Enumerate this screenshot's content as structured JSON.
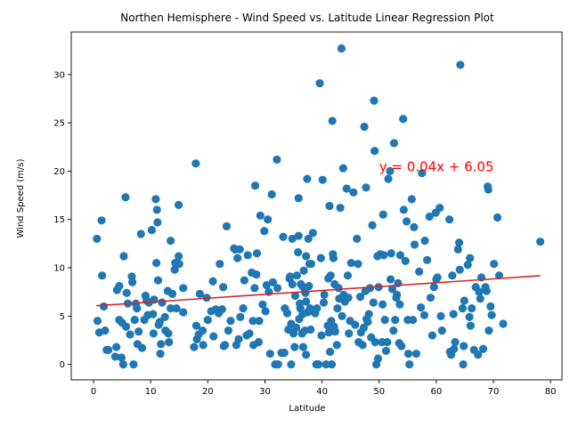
{
  "chart_data": {
    "type": "scatter",
    "title": "Northen Hemisphere - Wind Speed vs. Latitude Linear Regression Plot",
    "xlabel": "Latitude",
    "ylabel": "Wind Speed (m/s)",
    "xlim": [
      -3.9,
      82.0
    ],
    "ylim": [
      -1.6,
      34.4
    ],
    "xticks": [
      0,
      10,
      20,
      30,
      40,
      50,
      60,
      70,
      80
    ],
    "yticks": [
      0,
      5,
      10,
      15,
      20,
      25,
      30
    ],
    "grid": false,
    "point_color": "#1f77b4",
    "regression": {
      "slope": 0.04,
      "intercept": 6.05,
      "x_range": [
        0.5,
        78.2
      ],
      "color": "#d62728",
      "equation_label": "y = 0.04x + 6.05",
      "label_x": 50,
      "label_y": 20,
      "label_color": "#ff0000"
    },
    "points": [
      [
        0.6,
        13.0
      ],
      [
        0.7,
        4.5
      ],
      [
        1.0,
        3.3
      ],
      [
        1.4,
        14.9
      ],
      [
        1.5,
        9.2
      ],
      [
        1.8,
        6.0
      ],
      [
        2.0,
        3.5
      ],
      [
        2.3,
        1.5
      ],
      [
        2.6,
        1.5
      ],
      [
        3.8,
        0.8
      ],
      [
        4.0,
        1.8
      ],
      [
        4.1,
        7.7
      ],
      [
        4.5,
        8.1
      ],
      [
        4.5,
        4.6
      ],
      [
        4.9,
        0.7
      ],
      [
        5.0,
        4.3
      ],
      [
        5.2,
        0.0
      ],
      [
        5.3,
        11.2
      ],
      [
        5.6,
        17.3
      ],
      [
        5.7,
        3.9
      ],
      [
        5.8,
        7.4
      ],
      [
        6.0,
        6.3
      ],
      [
        6.4,
        3.1
      ],
      [
        6.7,
        9.1
      ],
      [
        6.8,
        8.5
      ],
      [
        7.0,
        0.0
      ],
      [
        7.2,
        4.6
      ],
      [
        7.4,
        6.3
      ],
      [
        7.6,
        5.8
      ],
      [
        7.7,
        2.1
      ],
      [
        7.9,
        3.4
      ],
      [
        8.3,
        13.5
      ],
      [
        8.5,
        1.7
      ],
      [
        8.9,
        4.6
      ],
      [
        9.1,
        7.1
      ],
      [
        9.3,
        6.6
      ],
      [
        9.5,
        5.1
      ],
      [
        9.7,
        6.4
      ],
      [
        10.2,
        13.9
      ],
      [
        10.4,
        5.2
      ],
      [
        10.5,
        3.2
      ],
      [
        10.6,
        6.7
      ],
      [
        10.9,
        17.1
      ],
      [
        11.0,
        10.5
      ],
      [
        11.1,
        16.0
      ],
      [
        11.2,
        14.7
      ],
      [
        11.3,
        8.7
      ],
      [
        11.4,
        4.1
      ],
      [
        11.6,
        4.4
      ],
      [
        11.7,
        1.1
      ],
      [
        11.8,
        2.1
      ],
      [
        12.0,
        6.4
      ],
      [
        12.5,
        4.9
      ],
      [
        12.6,
        3.5
      ],
      [
        13.0,
        7.6
      ],
      [
        13.1,
        3.2
      ],
      [
        13.2,
        2.3
      ],
      [
        13.5,
        12.8
      ],
      [
        13.5,
        5.8
      ],
      [
        13.8,
        7.3
      ],
      [
        14.2,
        9.8
      ],
      [
        14.3,
        10.5
      ],
      [
        14.5,
        5.8
      ],
      [
        14.9,
        11.2
      ],
      [
        14.9,
        16.5
      ],
      [
        15.0,
        10.4
      ],
      [
        15.7,
        5.4
      ],
      [
        15.7,
        7.9
      ],
      [
        17.6,
        1.8
      ],
      [
        17.9,
        20.8
      ],
      [
        18.0,
        4.0
      ],
      [
        18.1,
        2.6
      ],
      [
        18.4,
        3.1
      ],
      [
        18.6,
        7.3
      ],
      [
        19.1,
        3.5
      ],
      [
        19.2,
        2.0
      ],
      [
        19.8,
        6.9
      ],
      [
        20.0,
        4.6
      ],
      [
        20.6,
        5.5
      ],
      [
        20.9,
        8.6
      ],
      [
        21.0,
        2.9
      ],
      [
        21.4,
        5.7
      ],
      [
        21.9,
        5.3
      ],
      [
        22.1,
        10.4
      ],
      [
        22.5,
        5.7
      ],
      [
        22.7,
        8.0
      ],
      [
        22.8,
        1.9
      ],
      [
        23.0,
        2.0
      ],
      [
        23.3,
        14.3
      ],
      [
        23.6,
        3.5
      ],
      [
        24.0,
        4.5
      ],
      [
        24.6,
        12.0
      ],
      [
        24.8,
        11.9
      ],
      [
        25.0,
        2.0
      ],
      [
        25.2,
        11.0
      ],
      [
        25.4,
        2.6
      ],
      [
        25.6,
        11.9
      ],
      [
        25.7,
        4.9
      ],
      [
        26.2,
        5.8
      ],
      [
        26.4,
        8.7
      ],
      [
        26.8,
        3.0
      ],
      [
        27.0,
        11.3
      ],
      [
        27.3,
        3.2
      ],
      [
        27.7,
        9.5
      ],
      [
        27.9,
        4.5
      ],
      [
        28.0,
        2.0
      ],
      [
        28.2,
        7.9
      ],
      [
        28.3,
        18.5
      ],
      [
        28.5,
        9.3
      ],
      [
        28.6,
        11.5
      ],
      [
        28.9,
        2.3
      ],
      [
        29.0,
        4.5
      ],
      [
        29.2,
        15.4
      ],
      [
        29.6,
        6.2
      ],
      [
        29.9,
        13.8
      ],
      [
        30.1,
        5.5
      ],
      [
        30.3,
        8.2
      ],
      [
        30.5,
        15.0
      ],
      [
        30.7,
        7.5
      ],
      [
        30.9,
        1.1
      ],
      [
        31.2,
        17.6
      ],
      [
        31.4,
        8.5
      ],
      [
        31.8,
        0.0
      ],
      [
        32.1,
        21.2
      ],
      [
        32.2,
        7.9
      ],
      [
        32.3,
        0.0
      ],
      [
        32.9,
        1.2
      ],
      [
        33.2,
        13.2
      ],
      [
        33.4,
        1.2
      ],
      [
        33.5,
        5.8
      ],
      [
        33.9,
        5.3
      ],
      [
        34.1,
        3.6
      ],
      [
        34.3,
        8.9
      ],
      [
        34.4,
        9.1
      ],
      [
        34.6,
        4.2
      ],
      [
        34.6,
        0.0
      ],
      [
        34.8,
        13.0
      ],
      [
        34.8,
        8.3
      ],
      [
        35.0,
        3.2
      ],
      [
        35.2,
        1.8
      ],
      [
        35.3,
        7.1
      ],
      [
        35.5,
        3.8
      ],
      [
        35.6,
        9.2
      ],
      [
        35.8,
        11.6
      ],
      [
        35.9,
        13.3
      ],
      [
        35.9,
        17.2
      ],
      [
        36.0,
        4.7
      ],
      [
        36.1,
        6.3
      ],
      [
        36.2,
        5.8
      ],
      [
        36.3,
        8.3
      ],
      [
        36.5,
        3.2
      ],
      [
        36.6,
        5.2
      ],
      [
        36.7,
        8.0
      ],
      [
        36.7,
        1.8
      ],
      [
        36.8,
        9.7
      ],
      [
        37.0,
        3.5
      ],
      [
        37.1,
        7.4
      ],
      [
        37.2,
        6.5
      ],
      [
        37.2,
        11.2
      ],
      [
        37.2,
        1.0
      ],
      [
        37.4,
        19.2
      ],
      [
        37.5,
        5.4
      ],
      [
        37.6,
        13.0
      ],
      [
        37.7,
        8.1
      ],
      [
        37.8,
        10.4
      ],
      [
        37.9,
        5.8
      ],
      [
        38.0,
        3.6
      ],
      [
        38.1,
        10.4
      ],
      [
        38.4,
        13.6
      ],
      [
        38.8,
        5.3
      ],
      [
        39.0,
        0.0
      ],
      [
        39.1,
        5.8
      ],
      [
        39.4,
        0.0
      ],
      [
        39.6,
        29.1
      ],
      [
        39.8,
        11.0
      ],
      [
        39.9,
        3.0
      ],
      [
        40.1,
        19.1
      ],
      [
        40.3,
        6.4
      ],
      [
        40.4,
        7.2
      ],
      [
        40.7,
        0.0
      ],
      [
        41.0,
        4.0
      ],
      [
        41.1,
        8.9
      ],
      [
        41.2,
        3.3
      ],
      [
        41.3,
        16.4
      ],
      [
        41.4,
        1.3
      ],
      [
        41.5,
        9.2
      ],
      [
        41.6,
        4.5
      ],
      [
        41.7,
        0.0
      ],
      [
        41.8,
        25.2
      ],
      [
        41.9,
        11.4
      ],
      [
        42.0,
        11.0
      ],
      [
        42.1,
        3.9
      ],
      [
        42.2,
        8.3
      ],
      [
        42.3,
        3.4
      ],
      [
        42.6,
        2.0
      ],
      [
        42.7,
        5.8
      ],
      [
        42.9,
        7.9
      ],
      [
        43.0,
        6.8
      ],
      [
        43.2,
        16.2
      ],
      [
        43.4,
        32.7
      ],
      [
        43.5,
        5.0
      ],
      [
        43.7,
        20.3
      ],
      [
        43.8,
        7.2
      ],
      [
        44.0,
        6.5
      ],
      [
        44.3,
        18.2
      ],
      [
        44.5,
        9.2
      ],
      [
        44.6,
        6.9
      ],
      [
        44.7,
        3.2
      ],
      [
        44.9,
        4.5
      ],
      [
        45.1,
        10.5
      ],
      [
        45.5,
        17.8
      ],
      [
        45.8,
        4.1
      ],
      [
        46.1,
        13.0
      ],
      [
        46.3,
        10.4
      ],
      [
        46.4,
        2.3
      ],
      [
        46.7,
        7.0
      ],
      [
        46.8,
        3.3
      ],
      [
        47.1,
        2.0
      ],
      [
        47.3,
        3.8
      ],
      [
        47.4,
        24.6
      ],
      [
        47.6,
        7.6
      ],
      [
        47.7,
        18.3
      ],
      [
        47.8,
        4.7
      ],
      [
        48.0,
        4.4
      ],
      [
        48.2,
        5.2
      ],
      [
        48.4,
        7.9
      ],
      [
        48.6,
        2.8
      ],
      [
        48.8,
        14.4
      ],
      [
        49.0,
        6.4
      ],
      [
        49.1,
        27.3
      ],
      [
        49.2,
        22.1
      ],
      [
        49.3,
        2.3
      ],
      [
        49.5,
        0.0
      ],
      [
        49.7,
        11.2
      ],
      [
        49.8,
        0.6
      ],
      [
        49.9,
        8.0
      ],
      [
        50.2,
        11.4
      ],
      [
        50.5,
        2.3
      ],
      [
        50.6,
        6.2
      ],
      [
        50.7,
        15.5
      ],
      [
        50.8,
        11.3
      ],
      [
        51.0,
        4.6
      ],
      [
        51.2,
        1.4
      ],
      [
        51.4,
        2.3
      ],
      [
        51.6,
        19.2
      ],
      [
        51.9,
        20.0
      ],
      [
        52.0,
        8.8
      ],
      [
        52.1,
        11.5
      ],
      [
        52.3,
        7.8
      ],
      [
        52.5,
        3.5
      ],
      [
        52.6,
        22.9
      ],
      [
        52.8,
        4.6
      ],
      [
        53.0,
        6.9
      ],
      [
        53.1,
        7.2
      ],
      [
        53.3,
        8.4
      ],
      [
        53.5,
        2.2
      ],
      [
        53.6,
        6.2
      ],
      [
        53.7,
        11.3
      ],
      [
        53.9,
        1.9
      ],
      [
        54.2,
        25.4
      ],
      [
        54.3,
        16.0
      ],
      [
        54.6,
        10.7
      ],
      [
        54.8,
        14.8
      ],
      [
        55.0,
        4.6
      ],
      [
        55.1,
        1.1
      ],
      [
        55.3,
        0.0
      ],
      [
        55.7,
        17.1
      ],
      [
        55.9,
        4.6
      ],
      [
        56.1,
        14.2
      ],
      [
        56.2,
        12.4
      ],
      [
        56.5,
        1.1
      ],
      [
        57.0,
        9.6
      ],
      [
        57.3,
        5.9
      ],
      [
        57.5,
        19.8
      ],
      [
        57.9,
        5.1
      ],
      [
        58.0,
        12.8
      ],
      [
        58.4,
        10.8
      ],
      [
        58.8,
        15.3
      ],
      [
        59.0,
        6.9
      ],
      [
        59.3,
        3.0
      ],
      [
        59.6,
        8.0
      ],
      [
        59.9,
        15.7
      ],
      [
        60.0,
        8.8
      ],
      [
        60.2,
        9.0
      ],
      [
        60.6,
        16.2
      ],
      [
        60.8,
        5.0
      ],
      [
        61.0,
        3.5
      ],
      [
        62.3,
        15.0
      ],
      [
        62.4,
        1.3
      ],
      [
        62.6,
        1.0
      ],
      [
        62.8,
        9.2
      ],
      [
        63.0,
        5.2
      ],
      [
        63.1,
        1.6
      ],
      [
        63.3,
        2.3
      ],
      [
        63.8,
        11.9
      ],
      [
        64.0,
        12.6
      ],
      [
        64.1,
        9.8
      ],
      [
        64.2,
        31.0
      ],
      [
        64.6,
        5.8
      ],
      [
        64.7,
        0.0
      ],
      [
        64.8,
        1.9
      ],
      [
        64.9,
        6.6
      ],
      [
        65.5,
        10.3
      ],
      [
        65.8,
        4.9
      ],
      [
        65.9,
        11.0
      ],
      [
        66.0,
        4.0
      ],
      [
        66.2,
        5.8
      ],
      [
        66.6,
        1.5
      ],
      [
        66.9,
        8.0
      ],
      [
        67.3,
        1.0
      ],
      [
        67.5,
        7.5
      ],
      [
        67.7,
        6.8
      ],
      [
        67.9,
        9.0
      ],
      [
        68.2,
        1.6
      ],
      [
        68.6,
        8.0
      ],
      [
        68.8,
        7.6
      ],
      [
        69.0,
        18.4
      ],
      [
        69.1,
        18.1
      ],
      [
        69.2,
        3.5
      ],
      [
        69.5,
        6.0
      ],
      [
        69.7,
        5.1
      ],
      [
        70.1,
        10.4
      ],
      [
        70.7,
        15.2
      ],
      [
        71.0,
        9.2
      ],
      [
        71.7,
        4.2
      ],
      [
        78.2,
        12.7
      ]
    ]
  }
}
